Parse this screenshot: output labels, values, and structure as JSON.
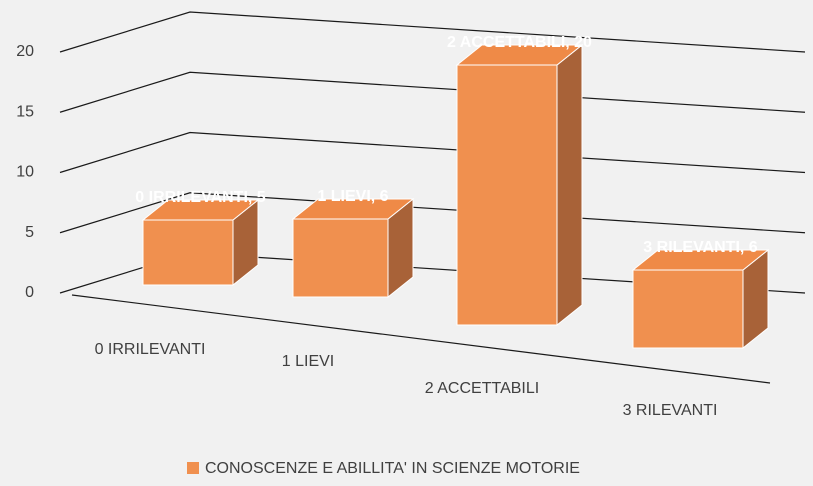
{
  "chart_data": {
    "type": "bar3d",
    "categories": [
      "0 IRRILEVANTI",
      "1 LIEVI",
      "2 ACCETTABILI",
      "3 RILEVANTI"
    ],
    "series": [
      {
        "name": "CONOSCENZE E ABILLITA' IN SCIENZE MOTORIE",
        "color": "#f0904f",
        "values": [
          5,
          6,
          20,
          6
        ],
        "value_labels": [
          "0 IRRILEVANTI, 5",
          "1 LIEVI, 6",
          "2 ACCETTABILI, 20",
          "3 RILEVANTI, 6"
        ]
      }
    ],
    "ylim": [
      0,
      20
    ],
    "yticks": [
      0,
      5,
      10,
      15,
      20
    ],
    "legend": "bottom"
  }
}
